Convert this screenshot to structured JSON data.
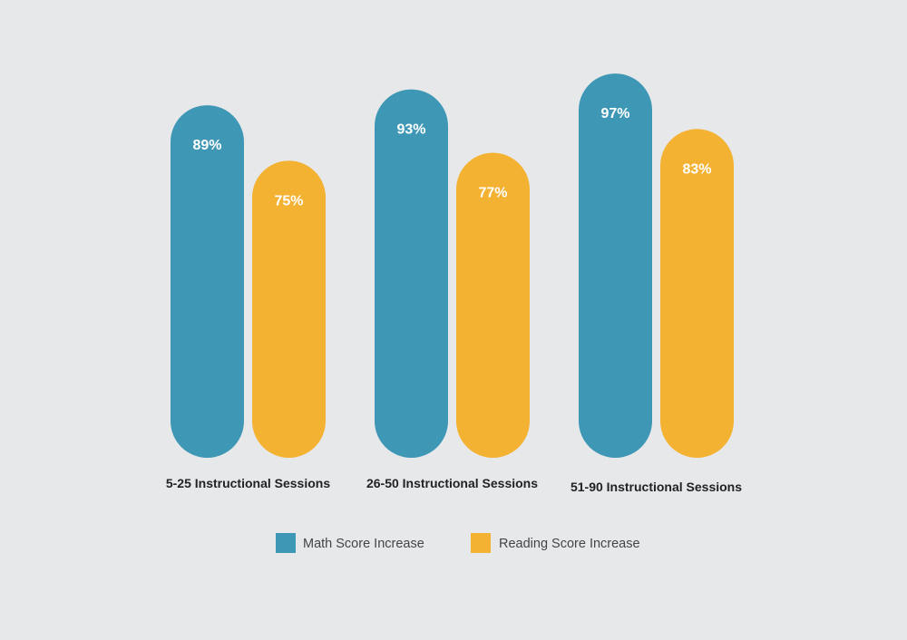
{
  "chart_data": {
    "type": "bar",
    "categories": [
      "5-25 Instructional Sessions",
      "26-50 Instructional Sessions",
      "51-90 Instructional Sessions"
    ],
    "series": [
      {
        "name": "Math Score Increase",
        "values": [
          89,
          93,
          97
        ],
        "color": "#3f97b6"
      },
      {
        "name": "Reading Score Increase",
        "values": [
          75,
          77,
          83
        ],
        "color": "#f4b233"
      }
    ],
    "value_suffix": "%",
    "title": "",
    "xlabel": "",
    "ylabel": "",
    "legend": "bottom-center",
    "grid": false
  },
  "background_color": "#e7e8ea"
}
